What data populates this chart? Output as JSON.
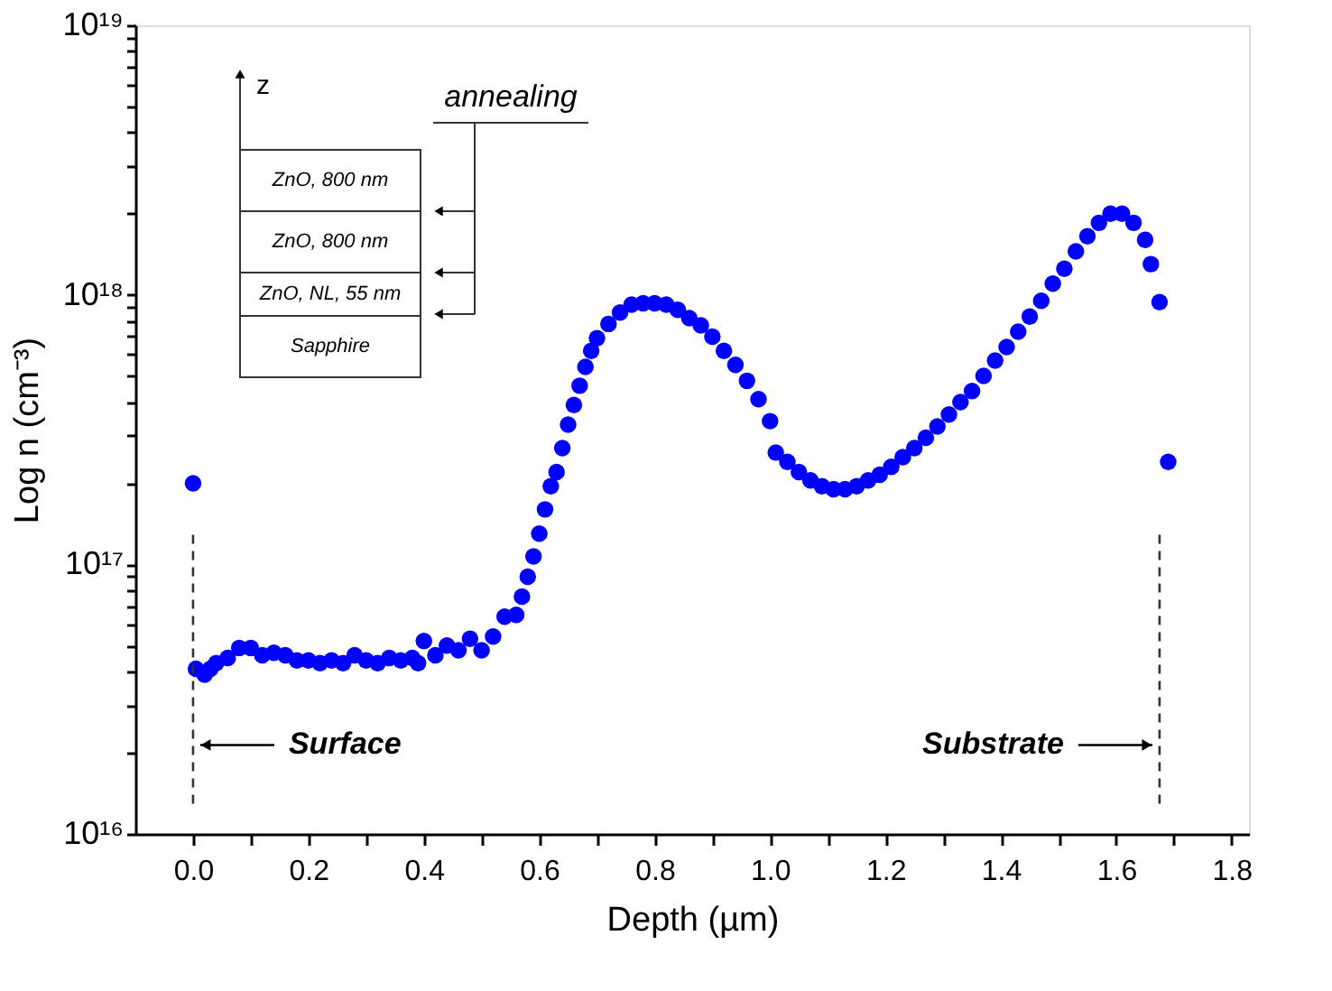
{
  "chart_data": {
    "type": "scatter",
    "xlabel": "Depth (µm)",
    "ylabel": "Log n (cm⁻³)",
    "log": "y",
    "grid": false,
    "marker": "circle",
    "xlim": [
      -0.1,
      1.83
    ],
    "xticks": [
      {
        "value": 0.0,
        "label": "0.0"
      },
      {
        "value": 0.1,
        "label": null
      },
      {
        "value": 0.2,
        "label": "0.2"
      },
      {
        "value": 0.3,
        "label": null
      },
      {
        "value": 0.4,
        "label": "0.4"
      },
      {
        "value": 0.5,
        "label": null
      },
      {
        "value": 0.6,
        "label": "0.6"
      },
      {
        "value": 0.7,
        "label": null
      },
      {
        "value": 0.8,
        "label": "0.8"
      },
      {
        "value": 0.9,
        "label": null
      },
      {
        "value": 1.0,
        "label": "1.0"
      },
      {
        "value": 1.1,
        "label": null
      },
      {
        "value": 1.2,
        "label": "1.2"
      },
      {
        "value": 1.3,
        "label": null
      },
      {
        "value": 1.4,
        "label": "1.4"
      },
      {
        "value": 1.5,
        "label": null
      },
      {
        "value": 1.6,
        "label": "1.6"
      },
      {
        "value": 1.7,
        "label": null
      },
      {
        "value": 1.8,
        "label": "1.8"
      }
    ],
    "ylim": [
      1e+16,
      1e+19
    ],
    "yticks": [
      {
        "value": 1e+16,
        "label": "10¹⁶"
      },
      {
        "value": 2e+16,
        "label": null
      },
      {
        "value": 3e+16,
        "label": null
      },
      {
        "value": 4e+16,
        "label": null
      },
      {
        "value": 5e+16,
        "label": null
      },
      {
        "value": 6e+16,
        "label": null
      },
      {
        "value": 7e+16,
        "label": null
      },
      {
        "value": 8e+16,
        "label": null
      },
      {
        "value": 9e+16,
        "label": null
      },
      {
        "value": 1e+17,
        "label": "10¹⁷"
      },
      {
        "value": 2e+17,
        "label": null
      },
      {
        "value": 3e+17,
        "label": null
      },
      {
        "value": 4e+17,
        "label": null
      },
      {
        "value": 5e+17,
        "label": null
      },
      {
        "value": 6e+17,
        "label": null
      },
      {
        "value": 7e+17,
        "label": null
      },
      {
        "value": 8e+17,
        "label": null
      },
      {
        "value": 9e+17,
        "label": null
      },
      {
        "value": 1e+18,
        "label": "10¹⁸"
      },
      {
        "value": 2e+18,
        "label": null
      },
      {
        "value": 3e+18,
        "label": null
      },
      {
        "value": 4e+18,
        "label": null
      },
      {
        "value": 5e+18,
        "label": null
      },
      {
        "value": 6e+18,
        "label": null
      },
      {
        "value": 7e+18,
        "label": null
      },
      {
        "value": 8e+18,
        "label": null
      },
      {
        "value": 9e+18,
        "label": null
      },
      {
        "value": 1e+19,
        "label": "10¹⁹"
      }
    ],
    "series": [
      {
        "type": "scatter",
        "color": "#0000ff",
        "x": [
          0.0,
          0.005,
          0.02,
          0.03,
          0.04,
          0.06,
          0.08,
          0.1,
          0.12,
          0.14,
          0.16,
          0.18,
          0.2,
          0.22,
          0.24,
          0.26,
          0.28,
          0.3,
          0.32,
          0.34,
          0.36,
          0.38,
          0.39,
          0.4,
          0.42,
          0.44,
          0.46,
          0.48,
          0.5,
          0.52,
          0.54,
          0.56,
          0.57,
          0.58,
          0.59,
          0.6,
          0.61,
          0.62,
          0.63,
          0.64,
          0.65,
          0.66,
          0.67,
          0.68,
          0.69,
          0.7,
          0.72,
          0.74,
          0.76,
          0.78,
          0.8,
          0.82,
          0.84,
          0.86,
          0.88,
          0.9,
          0.92,
          0.94,
          0.96,
          0.98,
          1.0,
          1.01,
          1.03,
          1.05,
          1.07,
          1.09,
          1.11,
          1.13,
          1.15,
          1.17,
          1.19,
          1.21,
          1.23,
          1.25,
          1.27,
          1.29,
          1.31,
          1.33,
          1.35,
          1.37,
          1.39,
          1.41,
          1.43,
          1.45,
          1.47,
          1.49,
          1.51,
          1.53,
          1.55,
          1.57,
          1.59,
          1.61,
          1.63,
          1.65,
          1.66,
          1.675,
          1.69
        ],
        "values": [
          2e+17,
          4.1e+16,
          3.9e+16,
          4.1e+16,
          4.3e+16,
          4.5e+16,
          4.9e+16,
          4.9e+16,
          4.6e+16,
          4.7e+16,
          4.6e+16,
          4.4e+16,
          4.4e+16,
          4.3e+16,
          4.4e+16,
          4.3e+16,
          4.6e+16,
          4.4e+16,
          4.3e+16,
          4.5e+16,
          4.4e+16,
          4.5e+16,
          4.3e+16,
          5.2e+16,
          4.6e+16,
          5e+16,
          4.8e+16,
          5.3e+16,
          4.8e+16,
          5.4e+16,
          6.4e+16,
          6.5e+16,
          7.6e+16,
          9e+16,
          1.07e+17,
          1.3e+17,
          1.6e+17,
          1.95e+17,
          2.2e+17,
          2.7e+17,
          3.3e+17,
          3.9e+17,
          4.6e+17,
          5.4e+17,
          6.2e+17,
          6.9e+17,
          7.8e+17,
          8.6e+17,
          9.2e+17,
          9.3e+17,
          9.3e+17,
          9.2e+17,
          8.8e+17,
          8.2e+17,
          7.7e+17,
          7e+17,
          6.2e+17,
          5.5e+17,
          4.8e+17,
          4.1e+17,
          3.4e+17,
          2.6e+17,
          2.4e+17,
          2.2e+17,
          2.05e+17,
          1.95e+17,
          1.9e+17,
          1.9e+17,
          1.95e+17,
          2.05e+17,
          2.15e+17,
          2.3e+17,
          2.5e+17,
          2.7e+17,
          2.95e+17,
          3.25e+17,
          3.6e+17,
          4e+17,
          4.4e+17,
          5e+17,
          5.7e+17,
          6.4e+17,
          7.3e+17,
          8.3e+17,
          9.5e+17,
          1.1e+18,
          1.25e+18,
          1.45e+18,
          1.65e+18,
          1.85e+18,
          2e+18,
          2e+18,
          1.85e+18,
          1.6e+18,
          1.3e+18,
          9.4e+17,
          2.4e+17
        ]
      }
    ],
    "ref_lines": [
      {
        "axis": "x",
        "value": 0.0,
        "label": "Surface",
        "line_style": "dashed",
        "color": "#333333"
      },
      {
        "axis": "x",
        "value": 1.675,
        "label": "Substrate",
        "line_style": "dashed",
        "color": "#333333"
      }
    ],
    "annotations": [
      "z",
      "annealing",
      "ZnO, 800 nm",
      "ZnO, 800 nm",
      "ZnO, NL, 55 nm",
      "Sapphire"
    ]
  }
}
